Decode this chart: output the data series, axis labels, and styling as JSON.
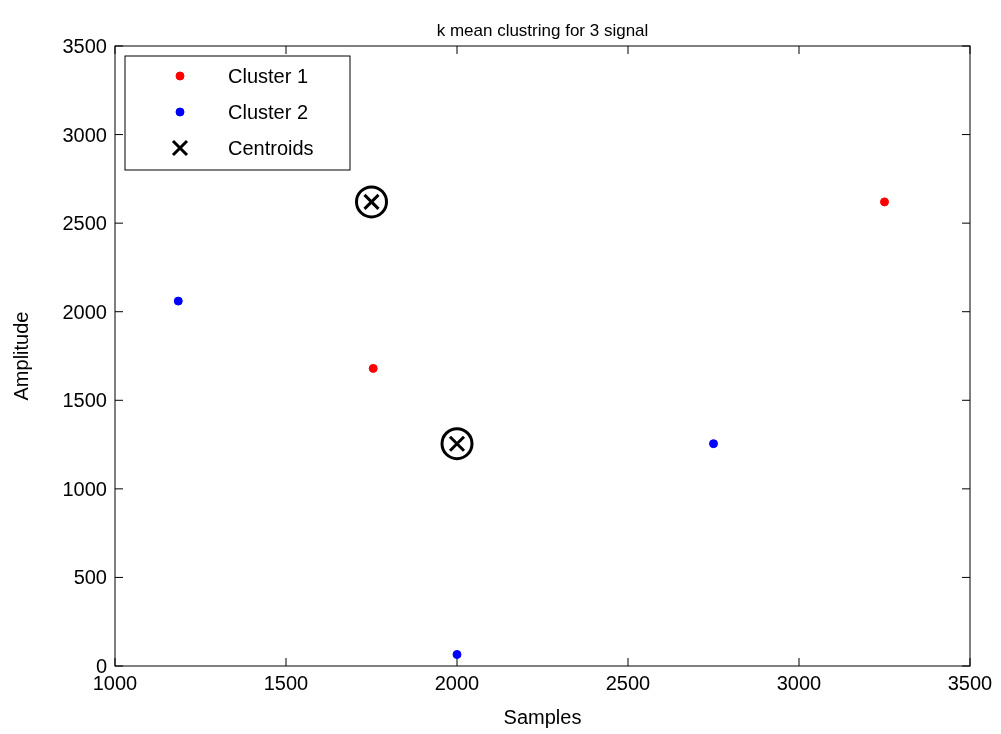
{
  "chart_data": {
    "type": "scatter",
    "title": "k mean clustring for 3 signal",
    "xlabel": "Samples",
    "ylabel": "Amplitude",
    "xlim": [
      1000,
      3500
    ],
    "xticks": [
      1000,
      1500,
      2000,
      2500,
      3000,
      3500
    ],
    "ylim": [
      0,
      3500
    ],
    "yticks": [
      0,
      500,
      1000,
      1500,
      2000,
      2500,
      3000,
      3500
    ],
    "grid": false,
    "legend": "top left",
    "series": [
      {
        "name": "Cluster 1",
        "color": "#ff0000",
        "marker": "circle",
        "x": [
          1755,
          3250
        ],
        "values": [
          1680,
          2620
        ]
      },
      {
        "name": "Cluster 2",
        "color": "#0000ff",
        "marker": "circle",
        "x": [
          1185,
          2000,
          2750
        ],
        "values": [
          2060,
          65,
          1255
        ]
      },
      {
        "name": "Centroids",
        "color": "#000000",
        "marker": "cross",
        "x": [
          1750,
          2000
        ],
        "values": [
          2620,
          1255
        ]
      }
    ]
  }
}
